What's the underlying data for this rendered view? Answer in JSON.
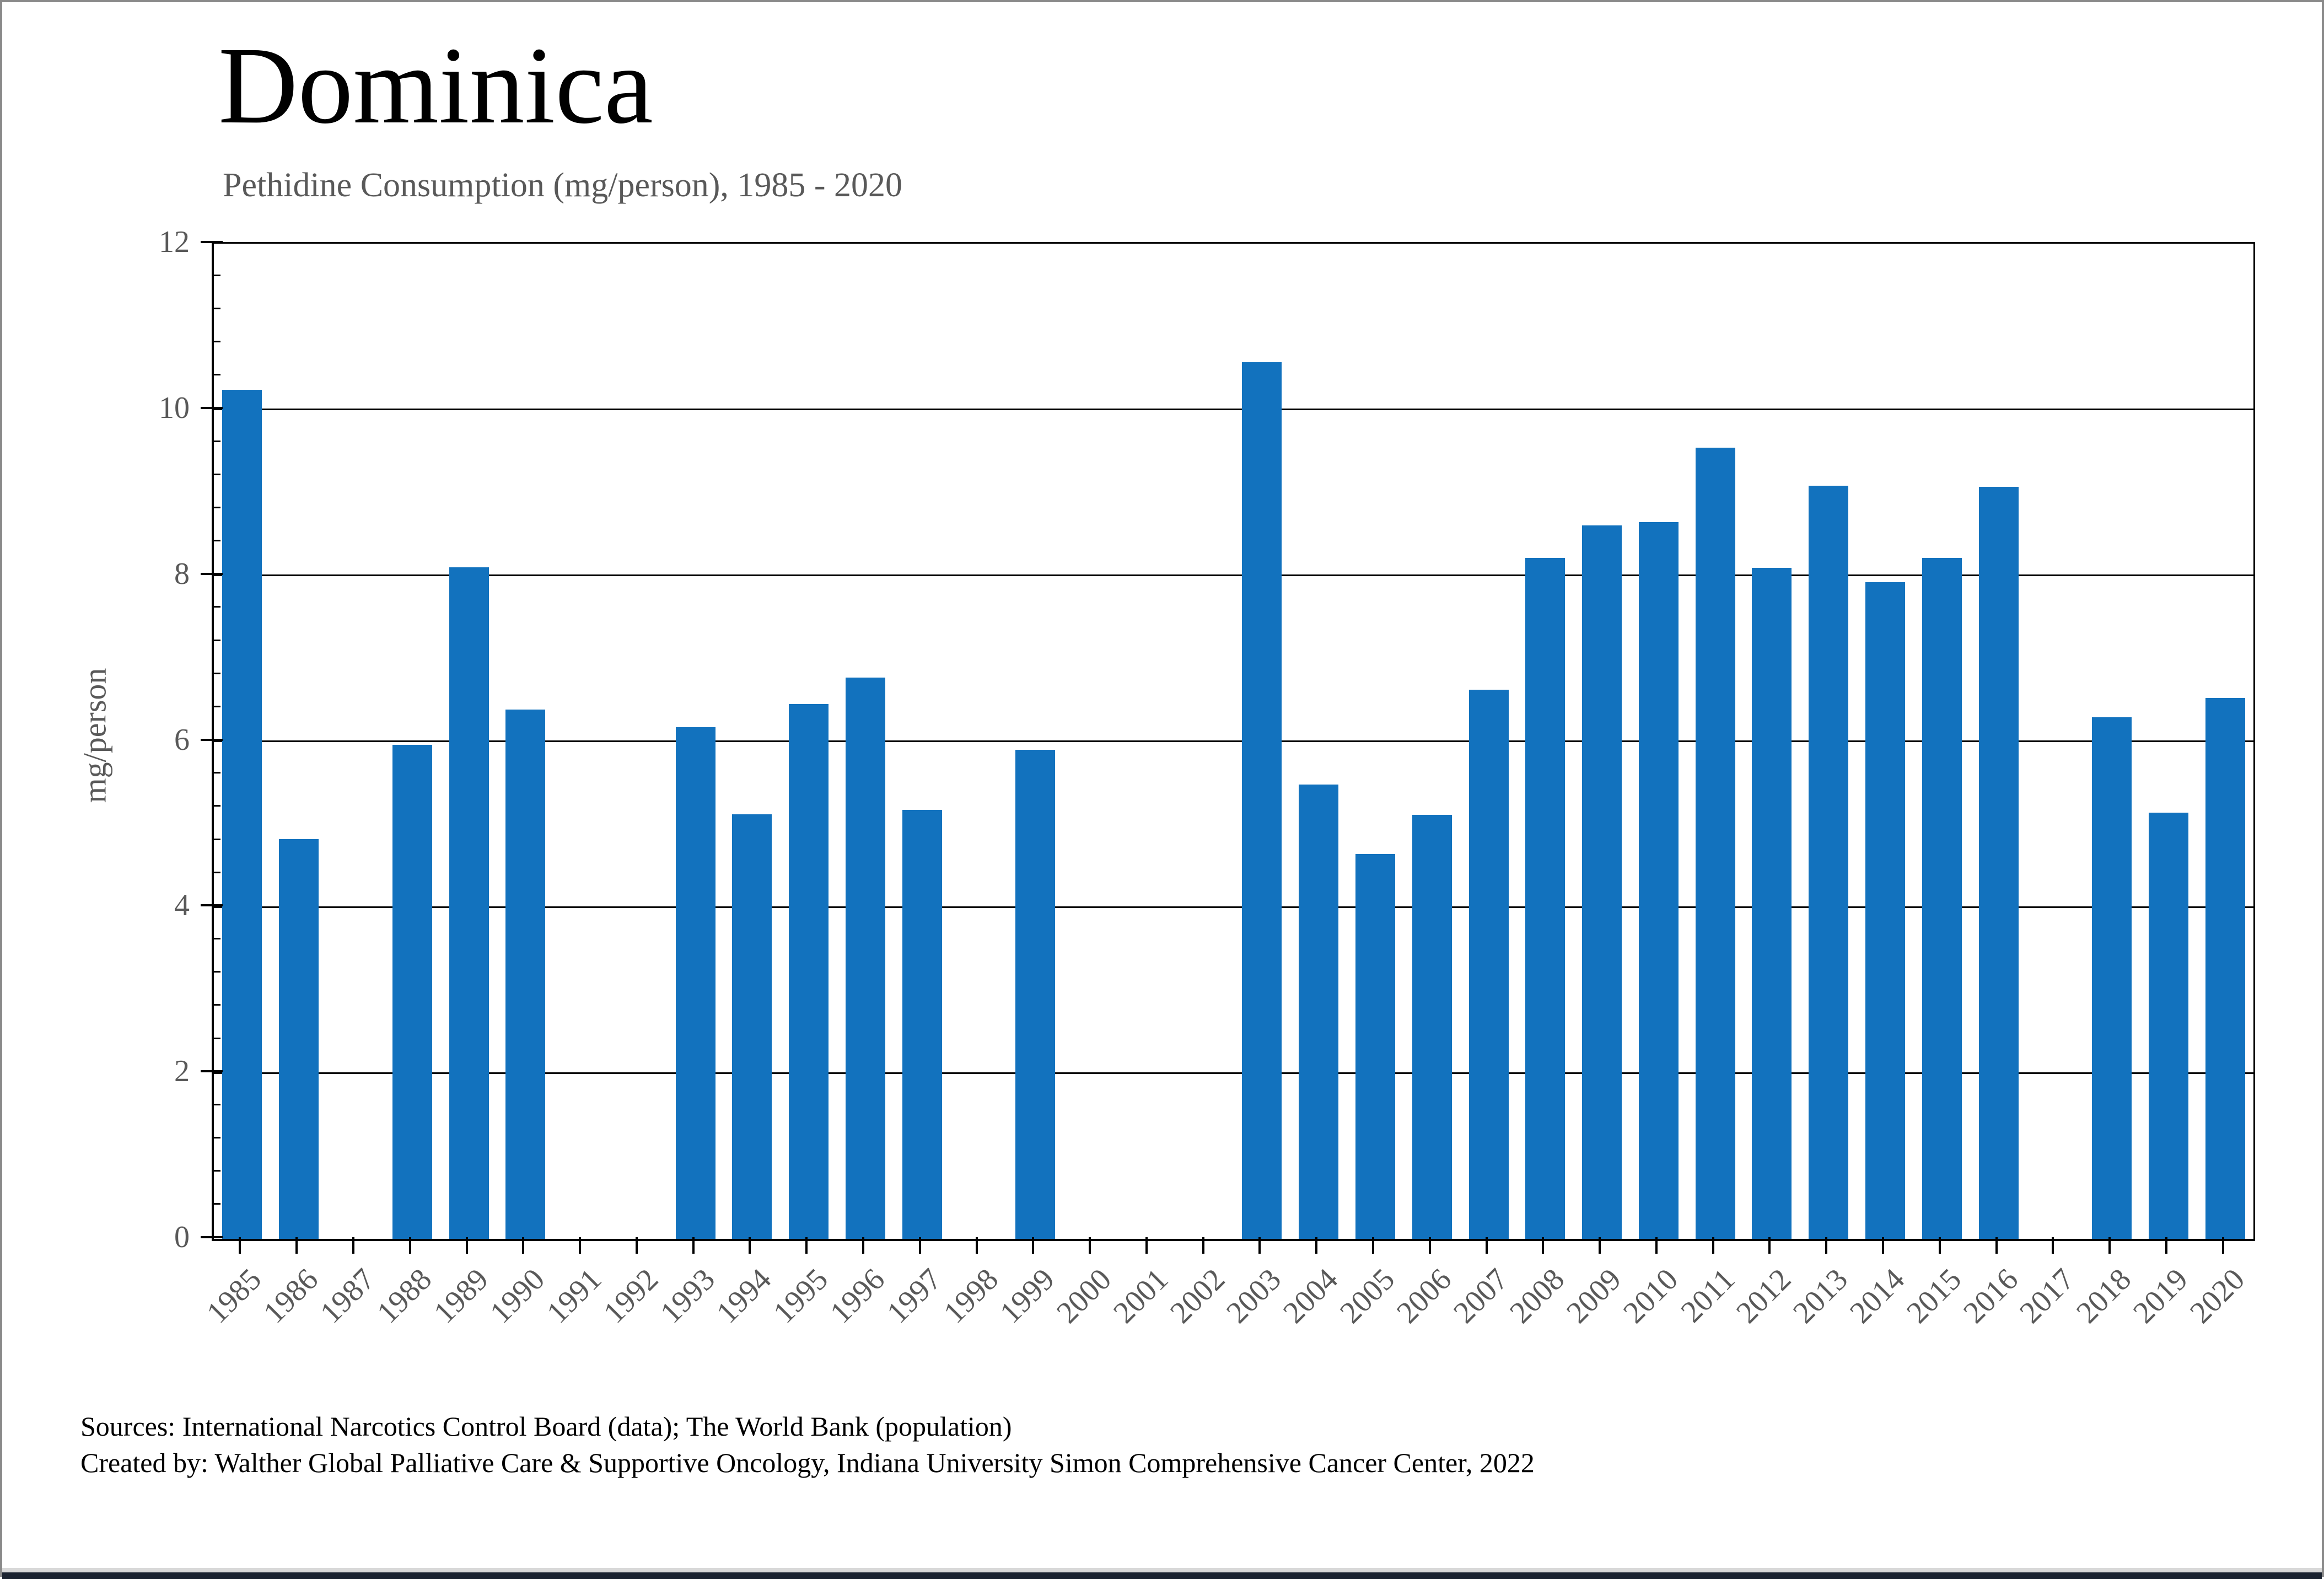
{
  "page": {
    "title": "Dominica",
    "subtitle": "Pethidine Consumption (mg/person), 1985 - 2020",
    "source_line_1": "Sources: International Narcotics Control Board (data); The World Bank (population)",
    "source_line_2": "Created by: Walther Global Palliative Care & Supportive Oncology, Indiana University Simon Comprehensive Cancer Center, 2022"
  },
  "chart_data": {
    "type": "bar",
    "title": "Dominica",
    "subtitle": "Pethidine Consumption (mg/person), 1985 - 2020",
    "xlabel": "",
    "ylabel": "mg/person",
    "ylim": [
      0,
      12
    ],
    "yticks": [
      0,
      2,
      4,
      6,
      8,
      10,
      12
    ],
    "minor_tick_step": 0.4,
    "grid": "horizontal",
    "legend": "none",
    "bar_color": "#1272BE",
    "axis_color": "#000000",
    "tick_label_color": "#595959",
    "categories": [
      "1985",
      "1986",
      "1987",
      "1988",
      "1989",
      "1990",
      "1991",
      "1992",
      "1993",
      "1994",
      "1995",
      "1996",
      "1997",
      "1998",
      "1999",
      "2000",
      "2001",
      "2002",
      "2003",
      "2004",
      "2005",
      "2006",
      "2007",
      "2008",
      "2009",
      "2010",
      "2011",
      "2012",
      "2013",
      "2014",
      "2015",
      "2016",
      "2017",
      "2018",
      "2019",
      "2020"
    ],
    "values": [
      10.24,
      4.82,
      0,
      5.96,
      8.1,
      6.38,
      0,
      0,
      6.17,
      5.12,
      6.45,
      6.77,
      5.17,
      0,
      5.9,
      0,
      0,
      0,
      10.57,
      5.48,
      4.64,
      5.11,
      6.62,
      8.21,
      8.6,
      8.64,
      9.54,
      8.09,
      9.08,
      7.92,
      8.21,
      9.07,
      0,
      6.29,
      5.14,
      6.52
    ]
  }
}
